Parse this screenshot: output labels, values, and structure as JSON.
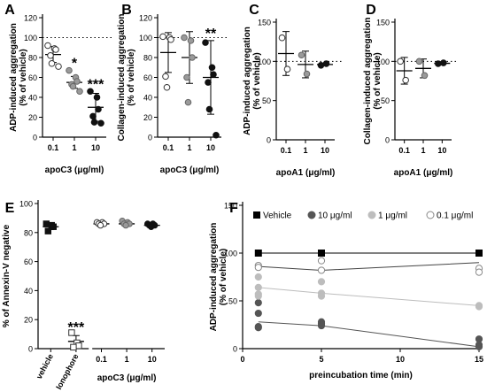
{
  "chart_data": [
    {
      "panel": "A",
      "type": "scatter",
      "xlabel": "apoC3 (μg/ml)",
      "ylabel": "ADP-induced aggregation (% of vehicle)",
      "ylim": [
        0,
        120
      ],
      "yticks": [
        0,
        20,
        40,
        60,
        80,
        100,
        120
      ],
      "reference_line": 100,
      "categories": [
        "0.1",
        "1",
        "10"
      ],
      "series": [
        {
          "category": "0.1",
          "fill": "open",
          "points": [
            92,
            89,
            88,
            82,
            74,
            71
          ],
          "mean": 83,
          "err": 8
        },
        {
          "category": "1",
          "fill": "gray",
          "points": [
            67,
            60,
            56,
            53,
            51,
            46
          ],
          "mean": 55,
          "err": 6,
          "marker": "*"
        },
        {
          "category": "10",
          "fill": "black",
          "points": [
            46,
            40,
            28,
            21,
            15,
            14
          ],
          "mean": 30,
          "err": 14,
          "marker": "***"
        }
      ]
    },
    {
      "panel": "B",
      "type": "scatter",
      "xlabel": "apoC3 (μg/ml)",
      "ylabel": "Collagen-induced aggregation (% of vehicle)",
      "ylim": [
        0,
        120
      ],
      "yticks": [
        0,
        20,
        40,
        60,
        80,
        100,
        120
      ],
      "reference_line": 100,
      "categories": [
        "0.1",
        "1",
        "10"
      ],
      "series": [
        {
          "category": "0.1",
          "fill": "open",
          "points": [
            101,
            100,
            98,
            61,
            50
          ],
          "mean": 85,
          "err": 20
        },
        {
          "category": "1",
          "fill": "gray",
          "points": [
            100,
            97,
            80,
            60,
            35
          ],
          "mean": 80,
          "err": 26
        },
        {
          "category": "10",
          "fill": "black",
          "points": [
            95,
            70,
            63,
            55,
            28,
            2
          ],
          "mean": 60,
          "err": 37,
          "marker": "**"
        }
      ]
    },
    {
      "panel": "C",
      "type": "scatter",
      "xlabel": "apoA1 (μg/ml)",
      "ylabel": "ADP-induced aggregation (% of vehicle)",
      "ylim": [
        0,
        150
      ],
      "yticks": [
        0,
        50,
        100,
        150
      ],
      "reference_line": 100,
      "categories": [
        "0.1",
        "1",
        "10"
      ],
      "series": [
        {
          "category": "0.1",
          "fill": "open",
          "points": [
            130,
            90
          ],
          "mean": 110,
          "err": 28
        },
        {
          "category": "1",
          "fill": "gray",
          "points": [
            108,
            84
          ],
          "mean": 96,
          "err": 17
        },
        {
          "category": "10",
          "fill": "black",
          "points": [
            95,
            97
          ],
          "mean": 96,
          "err": 1
        }
      ]
    },
    {
      "panel": "D",
      "type": "scatter",
      "xlabel": "apoA1 (μg/ml)",
      "ylabel": "Collagen-induced aggregation (% of vehicle)",
      "ylim": [
        0,
        150
      ],
      "yticks": [
        0,
        50,
        100,
        150
      ],
      "reference_line": 100,
      "categories": [
        "0.1",
        "1",
        "10"
      ],
      "series": [
        {
          "category": "0.1",
          "fill": "open",
          "points": [
            100,
            76
          ],
          "mean": 88,
          "err": 17
        },
        {
          "category": "1",
          "fill": "gray",
          "points": [
            100,
            82
          ],
          "mean": 91,
          "err": 12
        },
        {
          "category": "10",
          "fill": "black",
          "points": [
            97,
            98
          ],
          "mean": 97.5,
          "err": 1
        }
      ]
    },
    {
      "panel": "E",
      "type": "scatter",
      "ylabel": "% of Annexin-V negative",
      "xlabel": "apoC3 (μg/ml)",
      "ylim": [
        0,
        100
      ],
      "yticks": [
        0,
        20,
        40,
        60,
        80,
        100
      ],
      "categories": [
        "vehicle",
        "Ionophore",
        "0.1",
        "1",
        "10"
      ],
      "series": [
        {
          "category": "vehicle",
          "fill": "black",
          "marker_shape": "square",
          "points": [
            86,
            85,
            84,
            81
          ],
          "mean": 84,
          "err": 2
        },
        {
          "category": "Ionophore",
          "fill": "open",
          "marker_shape": "square",
          "points": [
            11,
            4,
            2,
            1
          ],
          "mean": 5,
          "err": 4,
          "marker": "***"
        },
        {
          "category": "0.1",
          "fill": "open",
          "marker_shape": "circle",
          "points": [
            87,
            87,
            86,
            86,
            85
          ],
          "mean": 86,
          "err": 1
        },
        {
          "category": "1",
          "fill": "gray",
          "marker_shape": "circle",
          "points": [
            88,
            87,
            86,
            86,
            85
          ],
          "mean": 86,
          "err": 1
        },
        {
          "category": "10",
          "fill": "black",
          "marker_shape": "circle",
          "points": [
            86,
            86,
            85,
            85,
            84
          ],
          "mean": 85,
          "err": 1
        }
      ]
    },
    {
      "panel": "F",
      "type": "line",
      "xlabel": "preincubation time (min)",
      "ylabel": "ADP-induced aggregation (% of vehicle)",
      "xlim": [
        0,
        15
      ],
      "ylim": [
        0,
        150
      ],
      "xticks": [
        0,
        5,
        10,
        15
      ],
      "yticks": [
        0,
        50,
        100,
        150
      ],
      "x": [
        1,
        5,
        15
      ],
      "series": [
        {
          "name": "Vehicle",
          "color": "#000000",
          "marker_shape": "square",
          "line": [
            100,
            100,
            100
          ],
          "points": [
            [
              1,
              100
            ],
            [
              5,
              100
            ],
            [
              15,
              100
            ]
          ]
        },
        {
          "name": "10 μg/ml",
          "color": "#555555",
          "marker_shape": "circle",
          "line": [
            28,
            24,
            2
          ],
          "points": [
            [
              1,
              48
            ],
            [
              1,
              37
            ],
            [
              1,
              23
            ],
            [
              1,
              22
            ],
            [
              5,
              28
            ],
            [
              5,
              26
            ],
            [
              5,
              24
            ],
            [
              15,
              10
            ],
            [
              15,
              4
            ],
            [
              15,
              2
            ]
          ]
        },
        {
          "name": "1 μg/ml",
          "color": "#bdbdbd",
          "marker_shape": "circle",
          "line": [
            64,
            58,
            45
          ],
          "points": [
            [
              1,
              75
            ],
            [
              1,
              64
            ],
            [
              1,
              57
            ],
            [
              1,
              55
            ],
            [
              5,
              70
            ],
            [
              5,
              58
            ],
            [
              5,
              55
            ],
            [
              15,
              45
            ],
            [
              15,
              44
            ]
          ]
        },
        {
          "name": "0.1 μg/ml",
          "color": "#ffffff",
          "marker_shape": "circle",
          "line": [
            86,
            82,
            90
          ],
          "points": [
            [
              1,
              87
            ],
            [
              1,
              85
            ],
            [
              5,
              92
            ],
            [
              5,
              82
            ],
            [
              15,
              84
            ],
            [
              15,
              80
            ]
          ]
        }
      ]
    }
  ]
}
